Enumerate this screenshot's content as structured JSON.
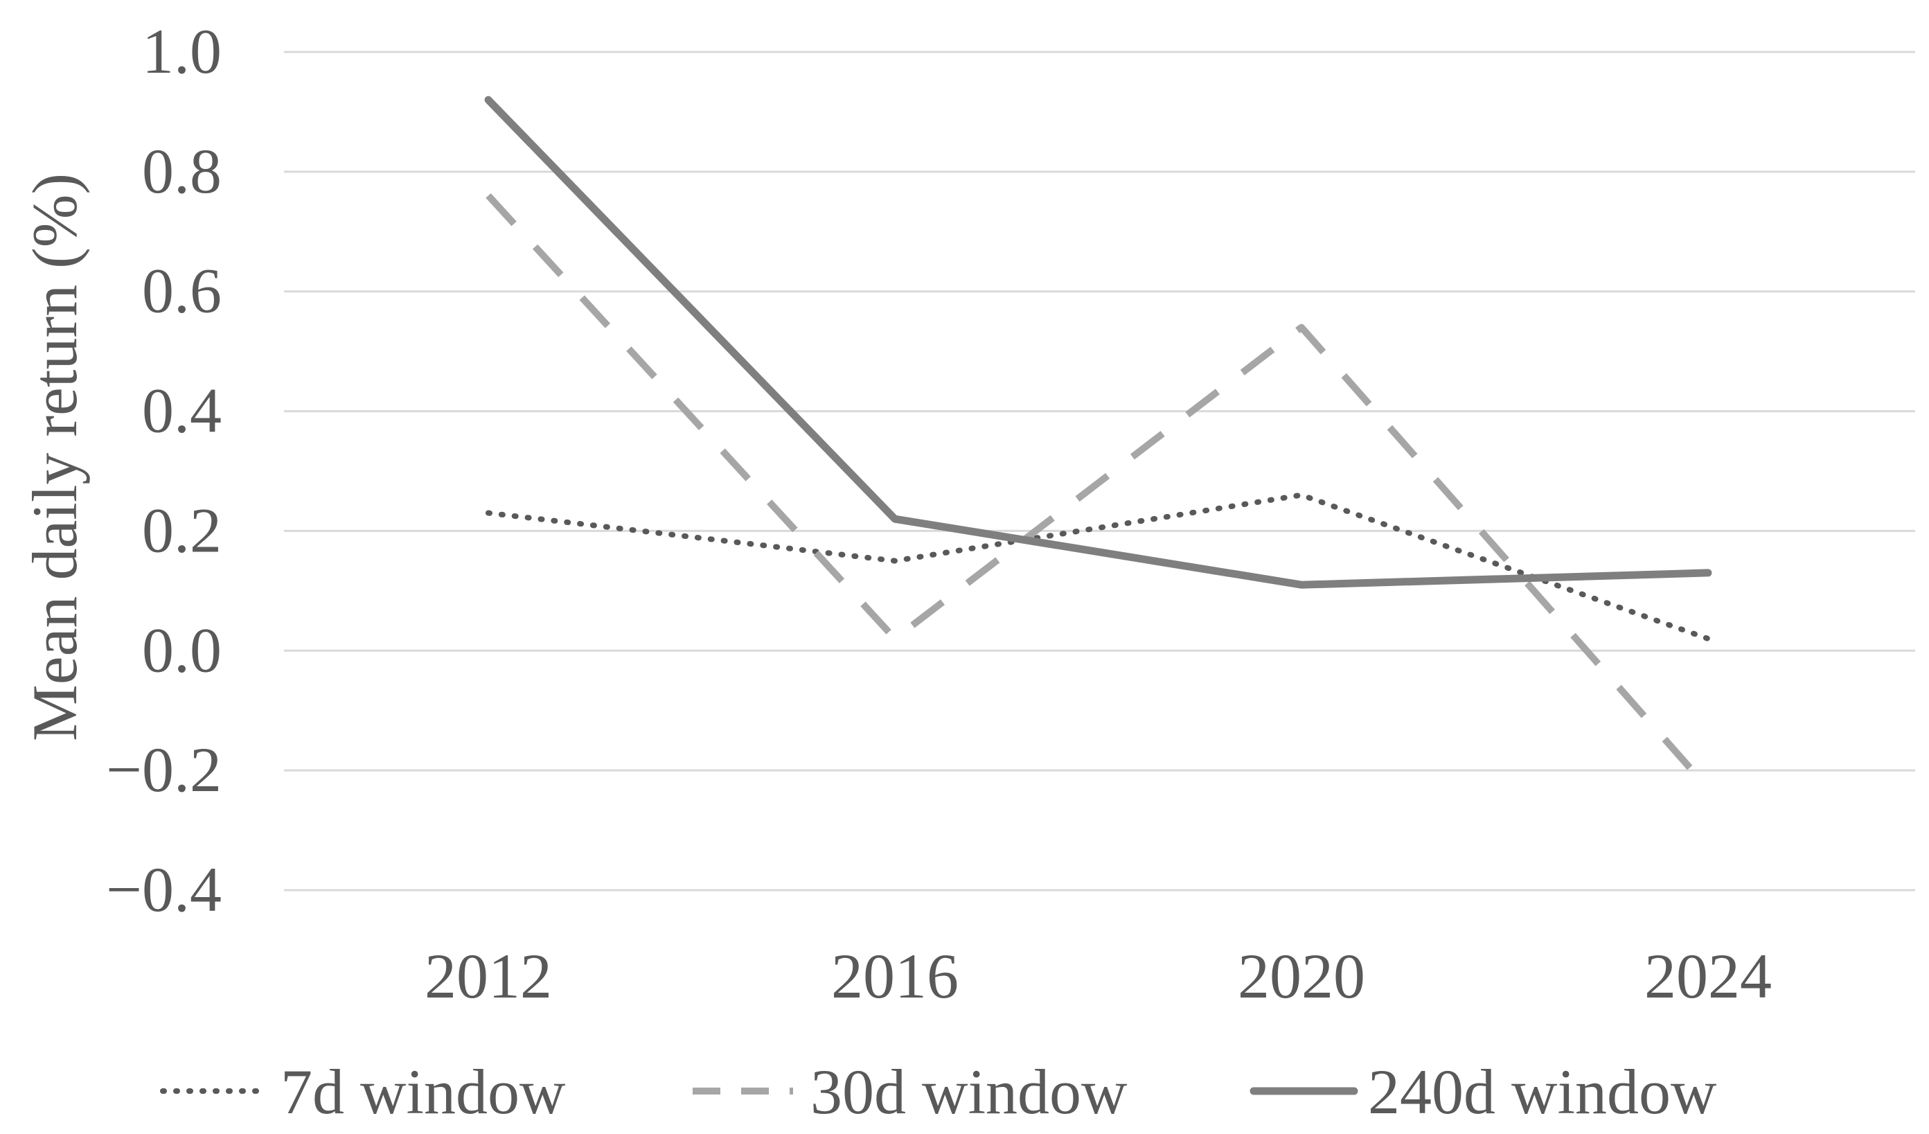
{
  "chart_data": {
    "type": "line",
    "title": "",
    "xlabel": "",
    "ylabel": "Mean daily return (%)",
    "categories": [
      "2012",
      "2016",
      "2020",
      "2024"
    ],
    "ylim": [
      -0.4,
      1.0
    ],
    "yticks": [
      1.0,
      0.8,
      0.6,
      0.4,
      0.2,
      0.0,
      -0.2,
      -0.4
    ],
    "ytick_labels": [
      "1.0",
      "0.8",
      "0.6",
      "0.4",
      "0.2",
      "0.0",
      "−0.2",
      "−0.4"
    ],
    "grid": true,
    "legend_position": "bottom",
    "series": [
      {
        "name": "7d window",
        "values": [
          0.23,
          0.15,
          0.26,
          0.02
        ],
        "style": "dotted",
        "color": "#595959"
      },
      {
        "name": "30d window",
        "values": [
          0.76,
          0.02,
          0.54,
          -0.23
        ],
        "style": "dashed",
        "color": "#a6a6a6"
      },
      {
        "name": "240d window",
        "values": [
          0.92,
          0.22,
          0.11,
          0.13
        ],
        "style": "solid",
        "color": "#7f7f7f"
      }
    ]
  }
}
